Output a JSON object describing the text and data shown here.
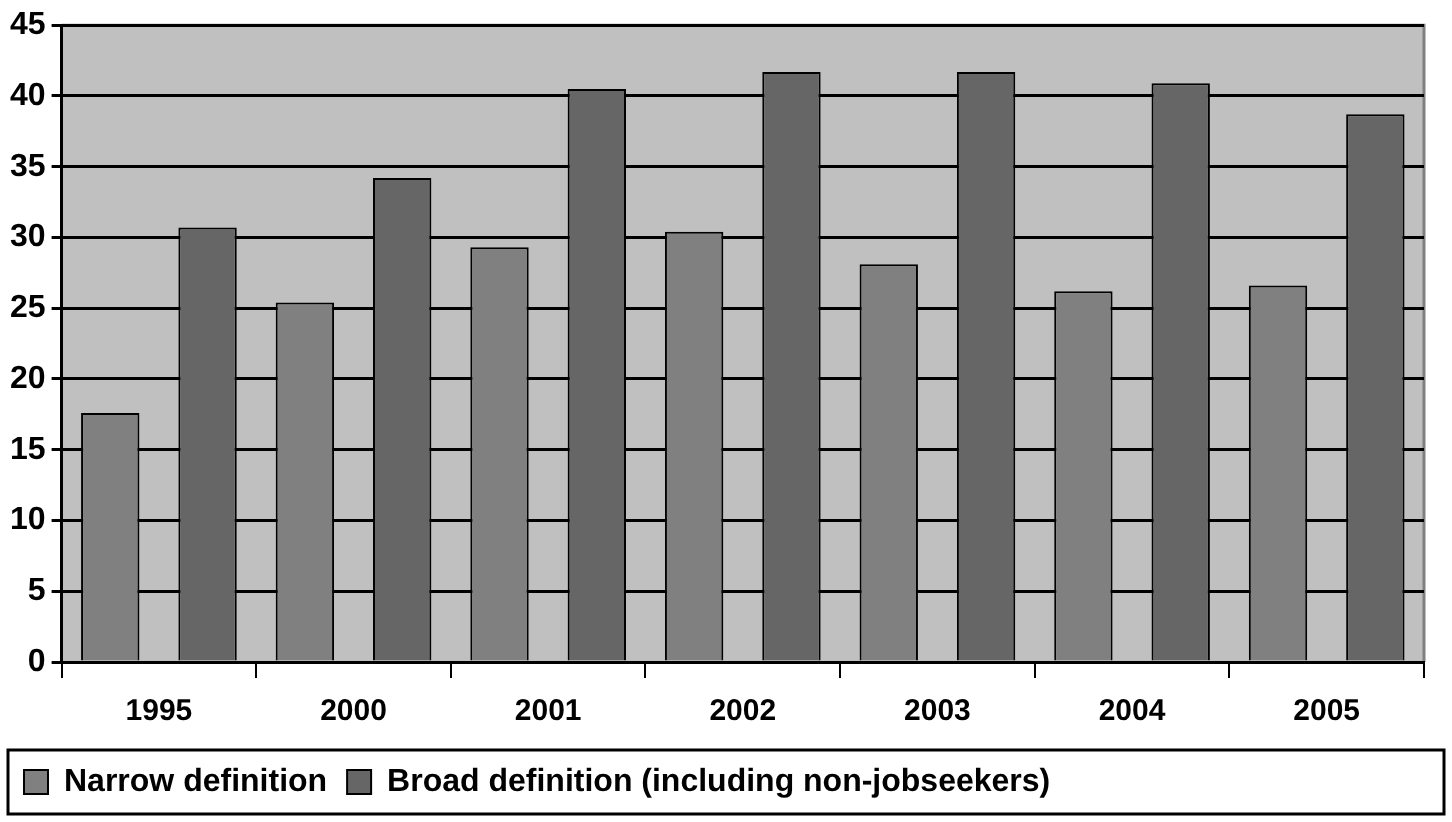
{
  "chart_data": {
    "type": "bar",
    "categories": [
      "1995",
      "2000",
      "2001",
      "2002",
      "2003",
      "2004",
      "2005"
    ],
    "series": [
      {
        "name": "Narrow definition",
        "color": "#808080",
        "values": [
          17.6,
          25.4,
          29.3,
          30.4,
          28.1,
          26.2,
          26.6
        ]
      },
      {
        "name": "Broad definition (including non-jobseekers)",
        "color": "#666666",
        "values": [
          30.7,
          34.2,
          40.5,
          41.7,
          41.7,
          40.9,
          38.7
        ]
      }
    ],
    "ylim": [
      0,
      45
    ],
    "yticks": [
      0,
      5,
      10,
      15,
      20,
      25,
      30,
      35,
      40,
      45
    ],
    "grid": "y",
    "legend": "bottom"
  }
}
